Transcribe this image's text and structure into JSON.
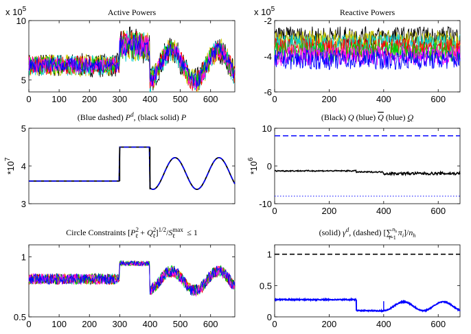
{
  "figure": {
    "panels": [
      {
        "title": "Active Powers",
        "exponent": "x 10",
        "exponent_power": "5",
        "ylabel": "",
        "xlabel_below": ""
      },
      {
        "title": "Reactive Powers",
        "exponent": "x 10",
        "exponent_power": "5",
        "ylabel": "",
        "xlabel_below": ""
      },
      {
        "title": "(Blue dashed) P^d, (black solid) P",
        "exponent": "",
        "exponent_power": "",
        "ylabel": "*10",
        "ylabel_power": "7"
      },
      {
        "title": "(Black) Q (blue) Q̄ (blue) Q̲",
        "exponent": "",
        "exponent_power": "",
        "ylabel": "*10",
        "ylabel_power": "6"
      },
      {
        "title": "Circle Constraints [P_ℓ^2 + Q_ℓ^2]^{1/2}/S_ℓ^{max} ≤ 1",
        "exponent": "",
        "exponent_power": "",
        "ylabel": ""
      },
      {
        "title": "(solid) γ^d, (dashed) [Σ_{i=1}^{n_h} π_i]/n_h",
        "exponent": "",
        "exponent_power": "",
        "ylabel": ""
      }
    ]
  },
  "chart_data": [
    {
      "type": "line",
      "title": "Active Powers",
      "x": [
        0,
        100,
        200,
        300,
        400,
        500,
        600
      ],
      "xlim": [
        0,
        680
      ],
      "ylim": [
        4,
        10
      ],
      "yticks": [
        5,
        10
      ],
      "y_scale_label": "x 10^5",
      "series": [
        {
          "values_by_segment": [
            {
              "x_range": [
                0,
                300
              ],
              "band": [
                5.2,
                7.3
              ],
              "center": 6.2
            },
            {
              "x_range": [
                300,
                400
              ],
              "band": [
                6.0,
                9.4
              ],
              "center": 7.9
            },
            {
              "x_range": [
                400,
                680
              ],
              "band": "sinusoidal",
              "center": 6.2,
              "amplitude": 1.3,
              "period": 155
            }
          ]
        }
      ],
      "colors": [
        "#0000ff",
        "#ff00ff",
        "#00cc00",
        "#ff0000",
        "#00cccc",
        "#cccc00",
        "#000000"
      ]
    },
    {
      "type": "line",
      "title": "Reactive Powers",
      "xlim": [
        0,
        680
      ],
      "ylim": [
        -6,
        -2
      ],
      "yticks": [
        -6,
        -4,
        -2
      ],
      "xticks": [
        0,
        200,
        400,
        600
      ],
      "y_scale_label": "x 10^5",
      "series": [
        {
          "band": [
            -4.8,
            -2.4
          ],
          "center": -3.6
        }
      ],
      "colors": [
        "#0000ff",
        "#ff00ff",
        "#00cc00",
        "#ff0000",
        "#00cccc",
        "#cccc00",
        "#000000"
      ]
    },
    {
      "type": "line",
      "title": "(Blue dashed) P^d, (black solid) P",
      "xlim": [
        0,
        680
      ],
      "ylim": [
        3,
        5
      ],
      "yticks": [
        3,
        4,
        5
      ],
      "y_scale_label": "*10^7",
      "series": [
        {
          "name": "P^d",
          "style": "dashed",
          "color": "#0000ff",
          "segments": [
            {
              "x_range": [
                0,
                300
              ],
              "y": 3.6
            },
            {
              "x_range": [
                300,
                400
              ],
              "y": 4.5
            },
            {
              "x_range": [
                400,
                680
              ],
              "form": "sinusoid",
              "mean": 3.8,
              "amplitude": 0.42,
              "period": 145,
              "min_at": 410
            }
          ]
        },
        {
          "name": "P",
          "style": "solid",
          "color": "#000000",
          "follows": "P^d"
        }
      ]
    },
    {
      "type": "line",
      "title": "(Black) Q (blue) Q̄ (blue) Q̲",
      "xlim": [
        0,
        680
      ],
      "ylim": [
        -10,
        10
      ],
      "yticks": [
        -10,
        0,
        10
      ],
      "xticks": [
        0,
        200,
        400,
        600
      ],
      "y_scale_label": "*10^6",
      "series": [
        {
          "name": "Q̄",
          "style": "dashed",
          "color": "#0000ff",
          "y": 8
        },
        {
          "name": "Q",
          "style": "solid",
          "color": "#000000",
          "y_start": -1.3,
          "y_end": -2.0
        },
        {
          "name": "Q̲",
          "style": "dotted",
          "color": "#0000ff",
          "y": -8
        }
      ]
    },
    {
      "type": "line",
      "title": "Circle Constraints [P_ℓ^2 + Q_ℓ^2]^{1/2}/S_ℓ^{max} ≤ 1",
      "xlim": [
        0,
        680
      ],
      "ylim": [
        0.5,
        1.1
      ],
      "yticks": [
        0.5,
        1
      ],
      "xticks": [
        0,
        100,
        200,
        300,
        400,
        500,
        600
      ],
      "series": [
        {
          "values_by_segment": [
            {
              "x_range": [
                0,
                300
              ],
              "band": [
                0.77,
                0.86
              ]
            },
            {
              "x_range": [
                300,
                400
              ],
              "band": [
                0.92,
                0.97
              ]
            },
            {
              "x_range": [
                400,
                680
              ],
              "form": "sinusoid",
              "mean": 0.8,
              "amplitude": 0.08,
              "period": 155
            }
          ]
        }
      ],
      "colors": [
        "#0000ff",
        "#ff00ff",
        "#00cc00",
        "#ff0000",
        "#00cccc",
        "#cccc00",
        "#000000"
      ]
    },
    {
      "type": "line",
      "title": "(solid) γ^d, (dashed) [Σ_{i=1}^{n_h} π_i]/n_h",
      "xlim": [
        0,
        680
      ],
      "ylim": [
        0,
        1.15
      ],
      "yticks": [
        0,
        0.5,
        1
      ],
      "xticks": [
        0,
        200,
        400,
        600
      ],
      "series": [
        {
          "name": "dashed",
          "style": "dashed",
          "color": "#000000",
          "y": 1.0
        },
        {
          "name": "solid",
          "style": "solid",
          "color": "#0000ff",
          "segments": [
            {
              "x_range": [
                0,
                300
              ],
              "y": 0.27
            },
            {
              "x_range": [
                300,
                400
              ],
              "y": 0.1
            },
            {
              "x_range": [
                400,
                680
              ],
              "form": "sinusoid",
              "mean": 0.17,
              "amplitude": 0.07,
              "period": 145
            }
          ]
        }
      ]
    }
  ]
}
